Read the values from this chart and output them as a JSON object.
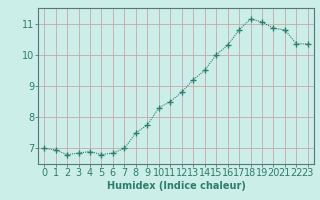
{
  "x": [
    0,
    1,
    2,
    3,
    4,
    5,
    6,
    7,
    8,
    9,
    10,
    11,
    12,
    13,
    14,
    15,
    16,
    17,
    18,
    19,
    20,
    21,
    22,
    23
  ],
  "y": [
    7.0,
    6.95,
    6.8,
    6.85,
    6.9,
    6.8,
    6.85,
    7.0,
    7.5,
    7.75,
    8.3,
    8.5,
    8.8,
    9.2,
    9.5,
    10.0,
    10.3,
    10.8,
    11.15,
    11.05,
    10.85,
    10.8,
    10.35,
    10.35
  ],
  "xlabel": "Humidex (Indice chaleur)",
  "xlim": [
    -0.5,
    23.5
  ],
  "ylim": [
    6.5,
    11.5
  ],
  "yticks": [
    7,
    8,
    9,
    10,
    11
  ],
  "xtick_labels": [
    "0",
    "1",
    "2",
    "3",
    "4",
    "5",
    "6",
    "7",
    "8",
    "9",
    "10",
    "11",
    "12",
    "13",
    "14",
    "15",
    "16",
    "17",
    "18",
    "19",
    "20",
    "21",
    "22",
    "23"
  ],
  "line_color": "#2e7d6e",
  "marker": "+",
  "bg_color": "#cceee8",
  "grid_color": "#c8a8a8",
  "label_fontsize": 7,
  "tick_fontsize": 7,
  "spine_color": "#557777"
}
